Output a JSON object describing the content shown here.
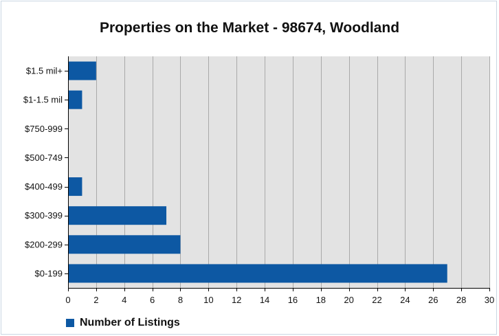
{
  "chart_data": {
    "type": "bar",
    "orientation": "horizontal",
    "title": "Properties on the Market - 98674, Woodland",
    "categories": [
      "$1.5 mil+",
      "$1-1.5 mil",
      "$750-999",
      "$500-749",
      "$400-499",
      "$300-399",
      "$200-299",
      "$0-199"
    ],
    "series": [
      {
        "name": "Number of Listings",
        "values": [
          2,
          1,
          0,
          0,
          1,
          7,
          8,
          27
        ]
      }
    ],
    "xlim": [
      0,
      30
    ],
    "xticks": [
      0,
      2,
      4,
      6,
      8,
      10,
      12,
      14,
      16,
      18,
      20,
      22,
      24,
      26,
      28,
      30
    ],
    "grid": "vertical",
    "legend": "bottom-left",
    "colors": {
      "bar": "#0d58a3",
      "plot_background": "#e3e3e3",
      "gridline": "#a9a9a9"
    }
  }
}
